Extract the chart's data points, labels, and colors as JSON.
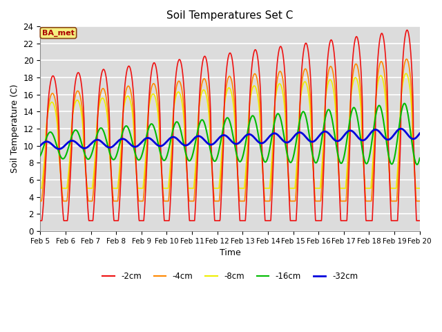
{
  "title": "Soil Temperatures Set C",
  "xlabel": "Time",
  "ylabel": "Soil Temperature (C)",
  "ylim": [
    0,
    24
  ],
  "xlim_hours": [
    0,
    360
  ],
  "plot_bg_color": "#dcdcdc",
  "fig_bg_color": "#ffffff",
  "grid_color": "#ffffff",
  "legend_label": "BA_met",
  "legend_box_color": "#f5f080",
  "legend_box_edge": "#8B4513",
  "series_colors": {
    "-2cm": "#ee1111",
    "-4cm": "#ff8800",
    "-8cm": "#eeee00",
    "-16cm": "#00bb00",
    "-32cm": "#0000dd"
  },
  "date_ticks": [
    "Feb 5",
    "Feb 6",
    "Feb 7",
    "Feb 8",
    "Feb 9",
    "Feb 10",
    "Feb 11",
    "Feb 12",
    "Feb 13",
    "Feb 14",
    "Feb 15",
    "Feb 16",
    "Feb 17",
    "Feb 18",
    "Feb 19",
    "Feb 20"
  ],
  "tick_positions": [
    0,
    24,
    48,
    72,
    96,
    120,
    144,
    168,
    192,
    216,
    240,
    264,
    288,
    312,
    336,
    360
  ],
  "yticks": [
    0,
    2,
    4,
    6,
    8,
    10,
    12,
    14,
    16,
    18,
    20,
    22,
    24
  ]
}
